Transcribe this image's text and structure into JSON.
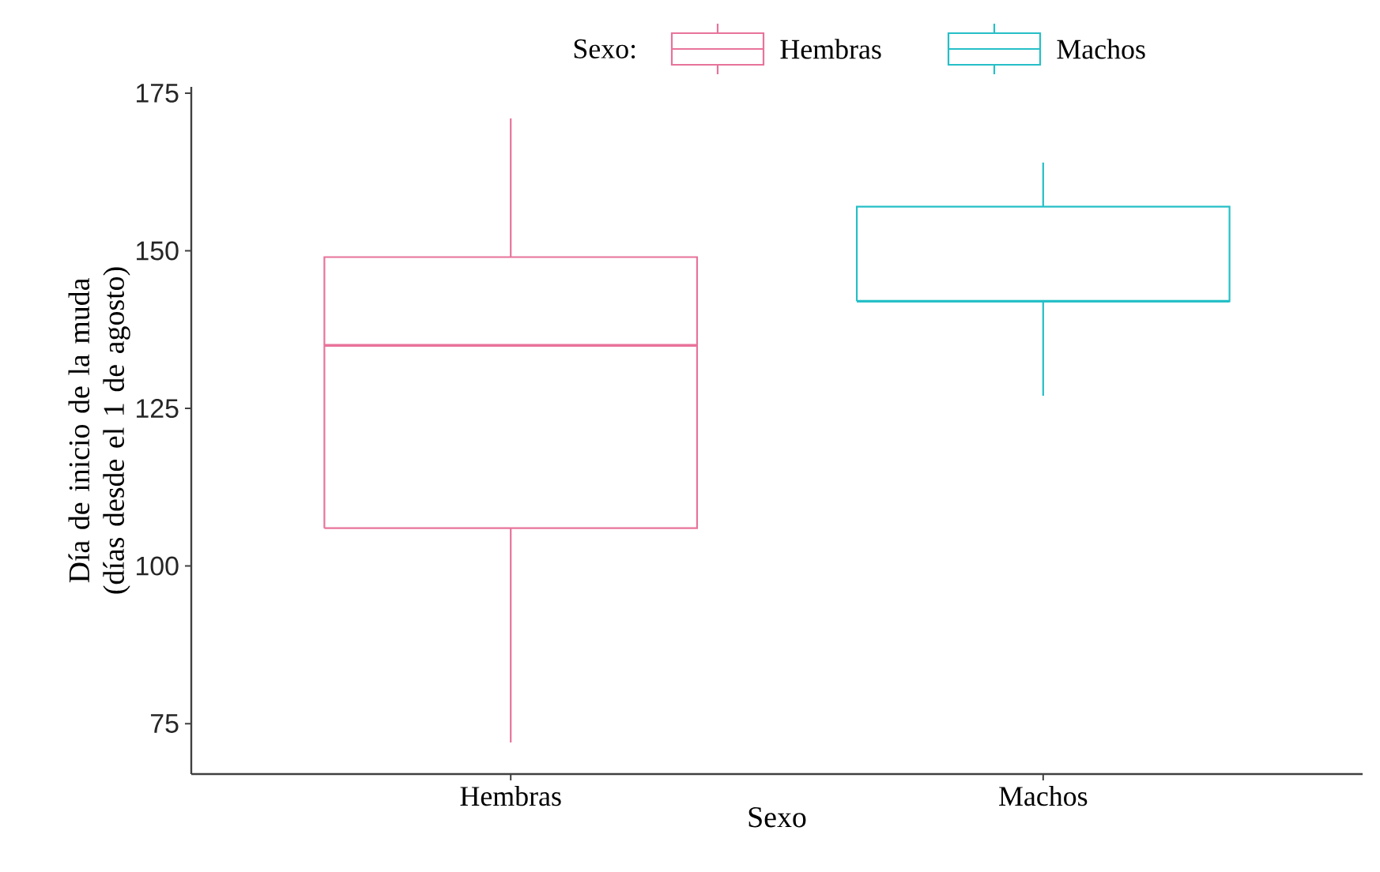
{
  "chart_data": {
    "type": "box",
    "xlabel": "Sexo",
    "ylabel": "Día de inicio de la muda (días desde el 1 de agosto)",
    "legend_title": "Sexo:",
    "categories": [
      "Hembras",
      "Machos"
    ],
    "series": [
      {
        "name": "Hembras",
        "color": "#e8739a",
        "boxes": [
          {
            "low": 72,
            "q1": 106,
            "median": 135,
            "q3": 149,
            "high": 171
          },
          null
        ]
      },
      {
        "name": "Machos",
        "color": "#26bfc7",
        "boxes": [
          null,
          {
            "low": 127,
            "q1": 142,
            "median": 142,
            "q3": 157,
            "high": 164
          }
        ]
      }
    ],
    "ylim": [
      67,
      176
    ],
    "yticks": [
      75,
      100,
      125,
      150,
      175
    ],
    "legend": "top",
    "grid": false
  }
}
